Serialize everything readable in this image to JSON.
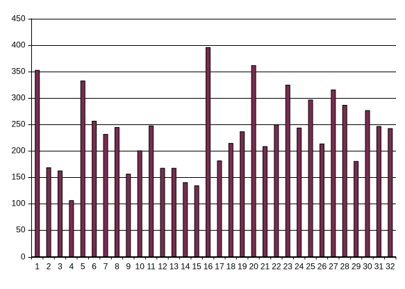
{
  "chart_data": {
    "type": "bar",
    "categories": [
      "1",
      "2",
      "3",
      "4",
      "5",
      "6",
      "7",
      "8",
      "9",
      "10",
      "11",
      "12",
      "13",
      "14",
      "15",
      "16",
      "17",
      "18",
      "19",
      "20",
      "21",
      "22",
      "23",
      "24",
      "25",
      "26",
      "27",
      "28",
      "29",
      "30",
      "31",
      "32"
    ],
    "values": [
      352,
      168,
      162,
      106,
      332,
      256,
      231,
      244,
      156,
      200,
      247,
      167,
      167,
      140,
      134,
      395,
      181,
      214,
      236,
      361,
      208,
      249,
      324,
      243,
      296,
      213,
      315,
      286,
      180,
      276,
      246,
      242
    ],
    "color": "#7b2c4e",
    "ylim": [
      0,
      450
    ],
    "yticks": [
      0,
      50,
      100,
      150,
      200,
      250,
      300,
      350,
      400,
      450
    ],
    "grid": true
  }
}
